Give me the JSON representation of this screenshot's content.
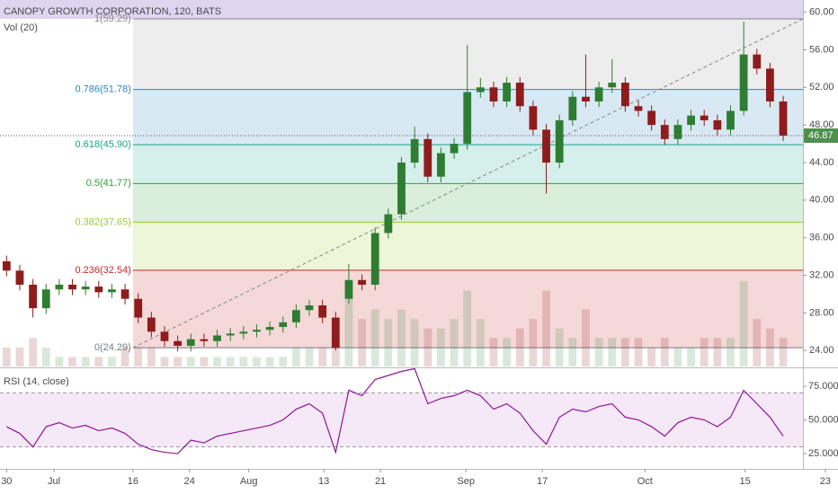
{
  "chart_data": {
    "type": "candlestick",
    "title": "CANOPY GROWTH CORPORATION, 120, BATS",
    "volume_title": "Vol (20)",
    "rsi_title": "RSI (14, close)",
    "last_label": "46.87",
    "up_color": "#2e7d32",
    "down_color": "#8e1c1c",
    "open": [
      33.5,
      32.5,
      31.0,
      28.5,
      30.5,
      31.0,
      30.5,
      30.8,
      30.2,
      30.5,
      29.5,
      27.5,
      26.0,
      25.0,
      24.5,
      25.2,
      25.0,
      25.6,
      25.8,
      26.0,
      26.2,
      26.5,
      27.0,
      28.3,
      28.8,
      27.5,
      29.5,
      31.5,
      31.0,
      36.5,
      38.5,
      44.0,
      46.5,
      42.5,
      45.0,
      46.0,
      51.5,
      52.0,
      50.5,
      52.5,
      50.0,
      47.5,
      44.0,
      48.5,
      51.0,
      50.5,
      52.0,
      52.5,
      50.0,
      49.5,
      48.0,
      46.5,
      48.0,
      49.0,
      48.5,
      47.5,
      49.5,
      55.5,
      54.0,
      50.5
    ],
    "high": [
      34.1,
      33.1,
      31.6,
      31.1,
      31.6,
      31.6,
      31.4,
      31.4,
      31.1,
      31.1,
      30.1,
      28.1,
      26.6,
      25.6,
      25.8,
      25.8,
      26.2,
      26.4,
      26.6,
      26.8,
      27.1,
      27.6,
      28.9,
      29.4,
      29.4,
      28.1,
      33.2,
      32.1,
      37.1,
      39.1,
      44.6,
      47.8,
      47.1,
      45.6,
      46.6,
      56.5,
      53.0,
      52.6,
      53.1,
      53.1,
      50.6,
      48.1,
      49.1,
      51.6,
      55.5,
      52.6,
      55.0,
      53.1,
      50.6,
      50.1,
      48.6,
      48.6,
      49.6,
      49.6,
      49.1,
      50.1,
      59.0,
      56.1,
      54.6,
      51.1
    ],
    "low": [
      31.9,
      30.4,
      27.5,
      27.9,
      29.9,
      29.9,
      29.9,
      29.6,
      29.6,
      28.9,
      26.9,
      25.4,
      24.4,
      23.9,
      23.9,
      24.4,
      24.4,
      25.0,
      25.2,
      25.4,
      25.6,
      25.9,
      26.4,
      27.7,
      26.9,
      24.0,
      29.0,
      30.4,
      30.4,
      35.9,
      37.9,
      43.4,
      41.9,
      41.9,
      44.4,
      45.4,
      50.9,
      49.9,
      49.9,
      49.4,
      46.9,
      40.7,
      43.4,
      47.9,
      49.9,
      49.9,
      51.4,
      49.4,
      48.9,
      47.4,
      45.9,
      45.9,
      47.4,
      47.9,
      46.9,
      46.9,
      49.0,
      53.4,
      49.9,
      46.3
    ],
    "close": [
      32.5,
      31.0,
      28.5,
      30.5,
      31.0,
      30.5,
      30.8,
      30.2,
      30.5,
      29.5,
      27.5,
      26.0,
      25.0,
      24.5,
      25.2,
      25.0,
      25.6,
      25.8,
      26.0,
      26.2,
      26.5,
      27.0,
      28.3,
      28.8,
      27.5,
      24.3,
      31.5,
      31.0,
      36.5,
      38.5,
      44.0,
      46.5,
      42.5,
      45.0,
      46.0,
      51.5,
      52.0,
      50.5,
      52.5,
      50.0,
      47.5,
      44.0,
      48.5,
      51.0,
      50.5,
      52.0,
      52.5,
      50.0,
      49.5,
      48.0,
      46.5,
      48.0,
      49.0,
      48.5,
      47.5,
      49.5,
      55.5,
      54.0,
      50.5,
      46.87
    ],
    "volume": [
      2,
      2,
      3,
      2,
      1,
      1,
      1,
      1,
      1,
      2,
      2,
      2,
      1,
      1,
      1,
      1,
      1,
      1,
      1,
      1,
      1,
      1,
      2,
      2,
      2,
      3,
      9,
      5,
      6,
      5,
      6,
      5,
      4,
      4,
      5,
      8,
      5,
      3,
      3,
      4,
      5,
      8,
      4,
      3,
      6,
      3,
      3,
      3,
      3,
      2,
      3,
      2,
      2,
      3,
      3,
      3,
      9,
      5,
      4,
      3
    ],
    "rsi": [
      45,
      40,
      30,
      45,
      48,
      44,
      46,
      42,
      44,
      40,
      32,
      28,
      26,
      25,
      35,
      33,
      38,
      40,
      42,
      44,
      46,
      50,
      58,
      62,
      55,
      26,
      72,
      68,
      80,
      83,
      86,
      88,
      62,
      66,
      68,
      72,
      68,
      58,
      62,
      55,
      42,
      32,
      52,
      58,
      56,
      60,
      62,
      52,
      50,
      45,
      38,
      48,
      52,
      50,
      45,
      52,
      72,
      62,
      52,
      38
    ],
    "rsi_color": "#8e1599",
    "rsi_bands": [
      30,
      70
    ],
    "xlim": [
      -0.5,
      60.5
    ],
    "xticks": [
      {
        "value": 0,
        "label": "30"
      },
      {
        "value": 3.6,
        "label": "Jul"
      },
      {
        "value": 9.6,
        "label": "16"
      },
      {
        "value": 13.9,
        "label": "24"
      },
      {
        "value": 18.4,
        "label": "Aug"
      },
      {
        "value": 24.1,
        "label": "13"
      },
      {
        "value": 28.4,
        "label": "21"
      },
      {
        "value": 34.9,
        "label": "Sep"
      },
      {
        "value": 40.7,
        "label": "17"
      },
      {
        "value": 48.5,
        "label": "Oct"
      },
      {
        "value": 56.1,
        "label": "15"
      },
      {
        "value": 62.2,
        "label": "23"
      }
    ],
    "ylim": [
      22.3,
      61.3
    ],
    "yticks": [
      {
        "value": 24,
        "label": "24.00"
      },
      {
        "value": 28,
        "label": "28.00"
      },
      {
        "value": 32,
        "label": "32.00"
      },
      {
        "value": 36,
        "label": "36.00"
      },
      {
        "value": 40,
        "label": "40.00"
      },
      {
        "value": 44,
        "label": "44.00"
      },
      {
        "value": 48,
        "label": "48.00"
      },
      {
        "value": 52,
        "label": "52.00"
      },
      {
        "value": 56,
        "label": "56.00"
      },
      {
        "value": 60,
        "label": "60.00"
      }
    ],
    "rsi_ylim": [
      13.7,
      87.0
    ],
    "rsi_yticks": [
      {
        "value": 75,
        "label": "75.0000"
      },
      {
        "value": 50,
        "label": "50.0000"
      },
      {
        "value": 25,
        "label": "25.0000"
      }
    ],
    "fib_start": 9.6,
    "fib_levels": [
      {
        "value": 24.29,
        "label": "0(24.29)",
        "color": "#787b86"
      },
      {
        "value": 32.54,
        "label": "0.236(32.54)",
        "color": "#c62828"
      },
      {
        "value": 37.65,
        "label": "0.382(37.65)",
        "color": "#9ccc25"
      },
      {
        "value": 41.77,
        "label": "0.5(41.77)",
        "color": "#2e9e3a"
      },
      {
        "value": 45.9,
        "label": "0.618(45.90)",
        "color": "#17a589"
      },
      {
        "value": 51.78,
        "label": "0.786(51.78)",
        "color": "#2e86c1"
      },
      {
        "value": 59.29,
        "label": "1(59.29)",
        "color": "#888888"
      }
    ]
  }
}
